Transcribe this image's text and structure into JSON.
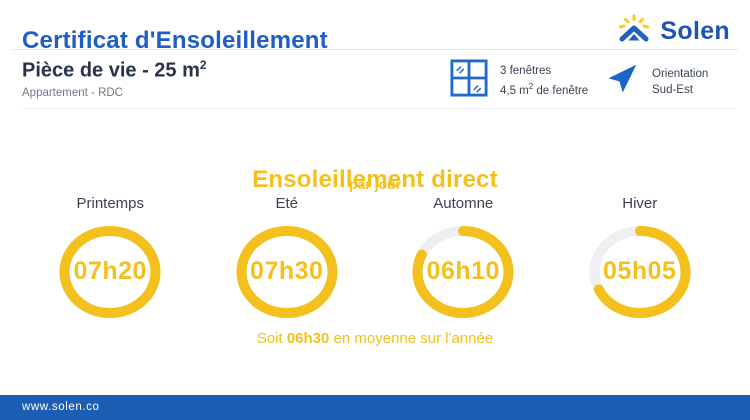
{
  "header": {
    "title": "Certificat d'Ensoleillement",
    "brand": "Solen"
  },
  "room": {
    "title": "Pièce de vie - 25 m",
    "title_sup": "2",
    "subtitle": "Appartement - RDC"
  },
  "windows": {
    "line1": "3 fenêtres",
    "line2_prefix": "4,5 m",
    "line2_sup": "2",
    "line2_suffix": " de fenêtre"
  },
  "orientation": {
    "line1": "Orientation",
    "line2": "Sud-Est"
  },
  "sunshine": {
    "title": "Ensoleillement direct",
    "subtitle": "par jour",
    "rings": [
      {
        "season": "Printemps",
        "value": "07h20",
        "percent": 100
      },
      {
        "season": "Eté",
        "value": "07h30",
        "percent": 100
      },
      {
        "season": "Automne",
        "value": "06h10",
        "percent": 82
      },
      {
        "season": "Hiver",
        "value": "05h05",
        "percent": 68
      }
    ],
    "summary_prefix": "Soit ",
    "summary_value": "06h30",
    "summary_suffix": " en moyenne sur l'année"
  },
  "footer": {
    "url": "www.solen.co"
  },
  "icons": {
    "logo": "sun-house-icon",
    "windows": "window-icon",
    "orientation": "compass-arrow-icon"
  },
  "colors": {
    "accent_blue": "#1F5EC2",
    "brand_navy": "#1E55B2",
    "icon_blue": "#1F6BCC",
    "yellow": "#F4C01E",
    "ring_track": "#EDEFF2",
    "footer_blue": "#1C5EB3"
  },
  "chart_data": {
    "type": "donut-gauges",
    "title": "Ensoleillement direct",
    "subtitle": "par jour",
    "categories": [
      "Printemps",
      "Eté",
      "Automne",
      "Hiver"
    ],
    "values_hours_per_day": [
      "07h20",
      "07h30",
      "06h10",
      "05h05"
    ],
    "fill_percent": [
      100,
      100,
      82,
      68
    ],
    "average_per_year": "06h30",
    "legend_position": "none",
    "grid": false
  }
}
